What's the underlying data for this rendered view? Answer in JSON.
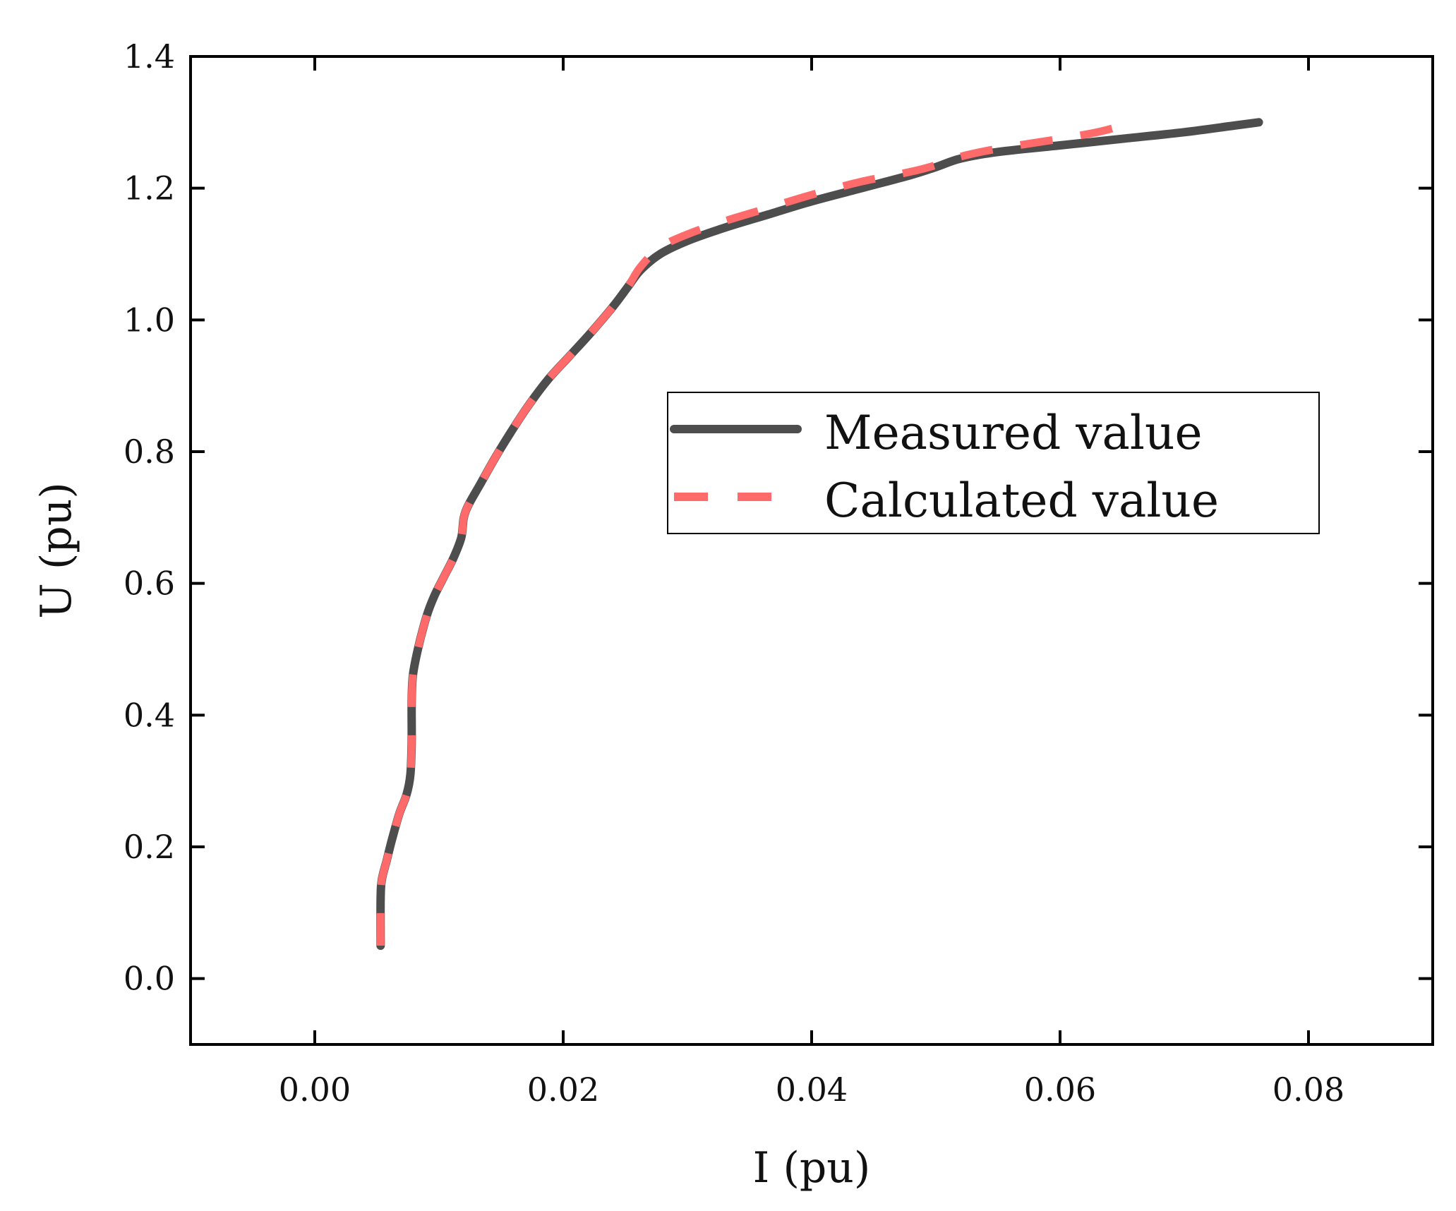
{
  "chart_data": {
    "type": "line",
    "title": "",
    "xlabel": "I (pu)",
    "ylabel": "U (pu)",
    "xlim": [
      -0.01,
      0.09
    ],
    "ylim": [
      -0.1,
      1.4
    ],
    "xticks": [
      0.0,
      0.02,
      0.04,
      0.06,
      0.08
    ],
    "xtick_labels": [
      "0.00",
      "0.02",
      "0.04",
      "0.06",
      "0.08"
    ],
    "yticks": [
      0.0,
      0.2,
      0.4,
      0.6,
      0.8,
      1.0,
      1.2,
      1.4
    ],
    "ytick_labels": [
      "0.0",
      "0.2",
      "0.4",
      "0.6",
      "0.8",
      "1.0",
      "1.2",
      "1.4"
    ],
    "grid": false,
    "legend_position": "center-right",
    "series": [
      {
        "name": "Measured value",
        "color": "#4d4d4d",
        "style": "solid",
        "x": [
          0.0053,
          0.0053,
          0.0054,
          0.0058,
          0.0062,
          0.0068,
          0.0074,
          0.0077,
          0.0078,
          0.0078,
          0.0079,
          0.0083,
          0.009,
          0.0096,
          0.0104,
          0.0112,
          0.0118,
          0.012,
          0.0124,
          0.0133,
          0.0145,
          0.0158,
          0.0172,
          0.0188,
          0.0205,
          0.0222,
          0.024,
          0.0252,
          0.0262,
          0.0278,
          0.03,
          0.033,
          0.0365,
          0.04,
          0.044,
          0.048,
          0.05,
          0.052,
          0.055,
          0.06,
          0.065,
          0.07,
          0.074,
          0.076
        ],
        "y": [
          0.05,
          0.12,
          0.15,
          0.18,
          0.21,
          0.25,
          0.28,
          0.31,
          0.36,
          0.42,
          0.46,
          0.5,
          0.55,
          0.58,
          0.61,
          0.64,
          0.67,
          0.7,
          0.72,
          0.75,
          0.79,
          0.83,
          0.87,
          0.91,
          0.945,
          0.98,
          1.02,
          1.05,
          1.075,
          1.1,
          1.12,
          1.14,
          1.16,
          1.18,
          1.2,
          1.22,
          1.232,
          1.245,
          1.255,
          1.265,
          1.275,
          1.285,
          1.295,
          1.3
        ]
      },
      {
        "name": "Calculated value",
        "color": "#ff6b6b",
        "style": "dashed",
        "x": [
          0.0053,
          0.0053,
          0.0054,
          0.0058,
          0.0062,
          0.0068,
          0.0074,
          0.0077,
          0.0078,
          0.0078,
          0.0079,
          0.0083,
          0.009,
          0.0096,
          0.0104,
          0.0112,
          0.0118,
          0.012,
          0.0124,
          0.0133,
          0.0145,
          0.0158,
          0.0172,
          0.0188,
          0.0205,
          0.0222,
          0.024,
          0.0252,
          0.0262,
          0.0278,
          0.03,
          0.033,
          0.0365,
          0.04,
          0.044,
          0.048,
          0.05,
          0.052,
          0.055,
          0.06,
          0.063,
          0.065
        ],
        "y": [
          0.05,
          0.12,
          0.15,
          0.18,
          0.21,
          0.25,
          0.28,
          0.31,
          0.36,
          0.42,
          0.46,
          0.5,
          0.55,
          0.58,
          0.61,
          0.64,
          0.67,
          0.7,
          0.72,
          0.75,
          0.79,
          0.83,
          0.87,
          0.91,
          0.945,
          0.98,
          1.02,
          1.05,
          1.08,
          1.11,
          1.13,
          1.15,
          1.17,
          1.19,
          1.21,
          1.225,
          1.235,
          1.248,
          1.26,
          1.275,
          1.285,
          1.295
        ]
      }
    ]
  }
}
